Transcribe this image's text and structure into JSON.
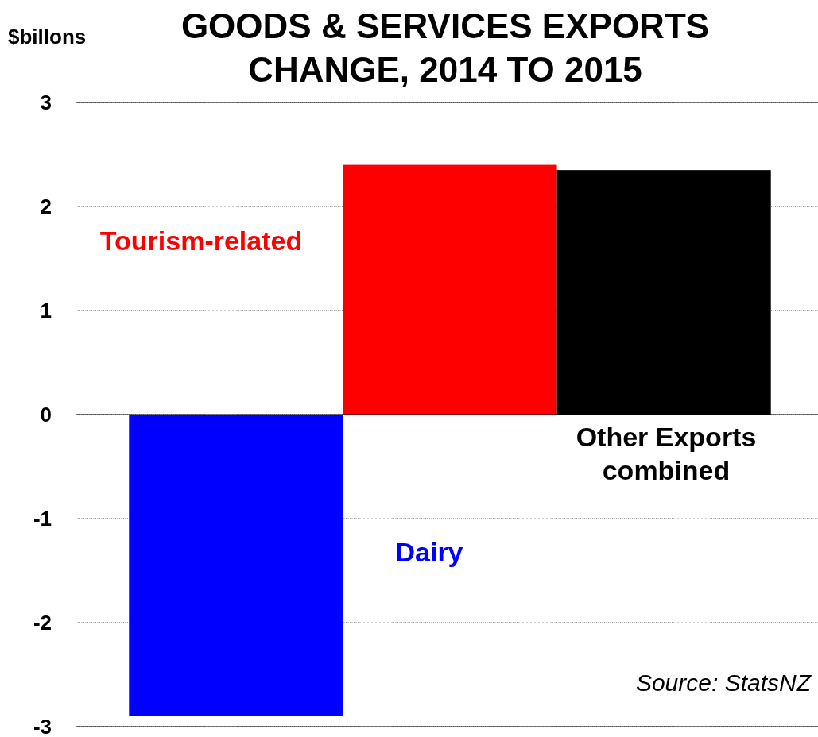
{
  "chart_data": {
    "type": "bar",
    "title": "GOODS & SERVICES EXPORTS\nCHANGE, 2014 TO 2015",
    "ylabel": "$billons",
    "categories": [
      null,
      null,
      null
    ],
    "series": [
      {
        "name": "Dairy",
        "color": "#0000ff",
        "values": [
          -2.9,
          null,
          null
        ]
      },
      {
        "name": "Tourism-related",
        "color": "#ff0000",
        "values": [
          null,
          2.4,
          null
        ]
      },
      {
        "name": "Other Exports combined",
        "color": "#000000",
        "values": [
          null,
          null,
          2.35
        ]
      }
    ],
    "ylim": [
      -3,
      3
    ],
    "yticks": [
      -3,
      -2,
      -1,
      0,
      1,
      2,
      3
    ],
    "grid": "y",
    "annotations": [
      "Source: StatsNZ"
    ]
  }
}
